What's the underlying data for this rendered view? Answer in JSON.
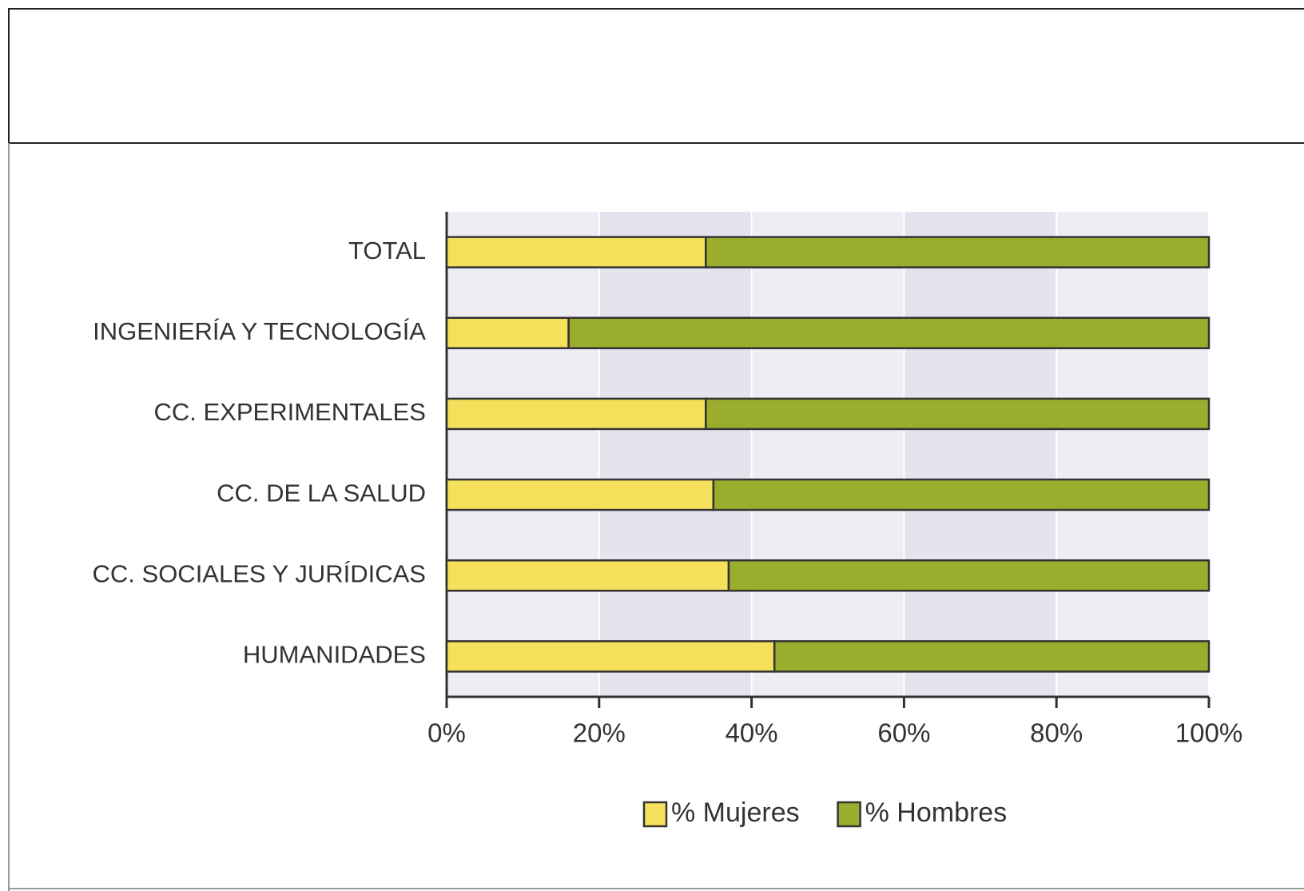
{
  "chart_data": {
    "type": "stacked-bar-horizontal",
    "categories": [
      "TOTAL",
      "INGENIERÍA Y TECNOLOGÍA",
      "CC. EXPERIMENTALES",
      "CC. DE LA SALUD",
      "CC. SOCIALES Y JURÍDICAS",
      "HUMANIDADES"
    ],
    "series": [
      {
        "name": "% Mujeres",
        "color": "#f4e05a",
        "values": [
          34,
          16,
          34,
          35,
          37,
          43
        ]
      },
      {
        "name": "% Hombres",
        "color": "#9bad2d",
        "values": [
          66,
          84,
          66,
          65,
          63,
          57
        ]
      }
    ],
    "xlim": [
      0,
      100
    ],
    "xticks": [
      {
        "value": 0,
        "label": "0%"
      },
      {
        "value": 20,
        "label": "20%"
      },
      {
        "value": 40,
        "label": "40%"
      },
      {
        "value": 60,
        "label": "60%"
      },
      {
        "value": 80,
        "label": "80%"
      },
      {
        "value": 100,
        "label": "100%"
      }
    ],
    "grid": true,
    "legend": "bottom"
  }
}
